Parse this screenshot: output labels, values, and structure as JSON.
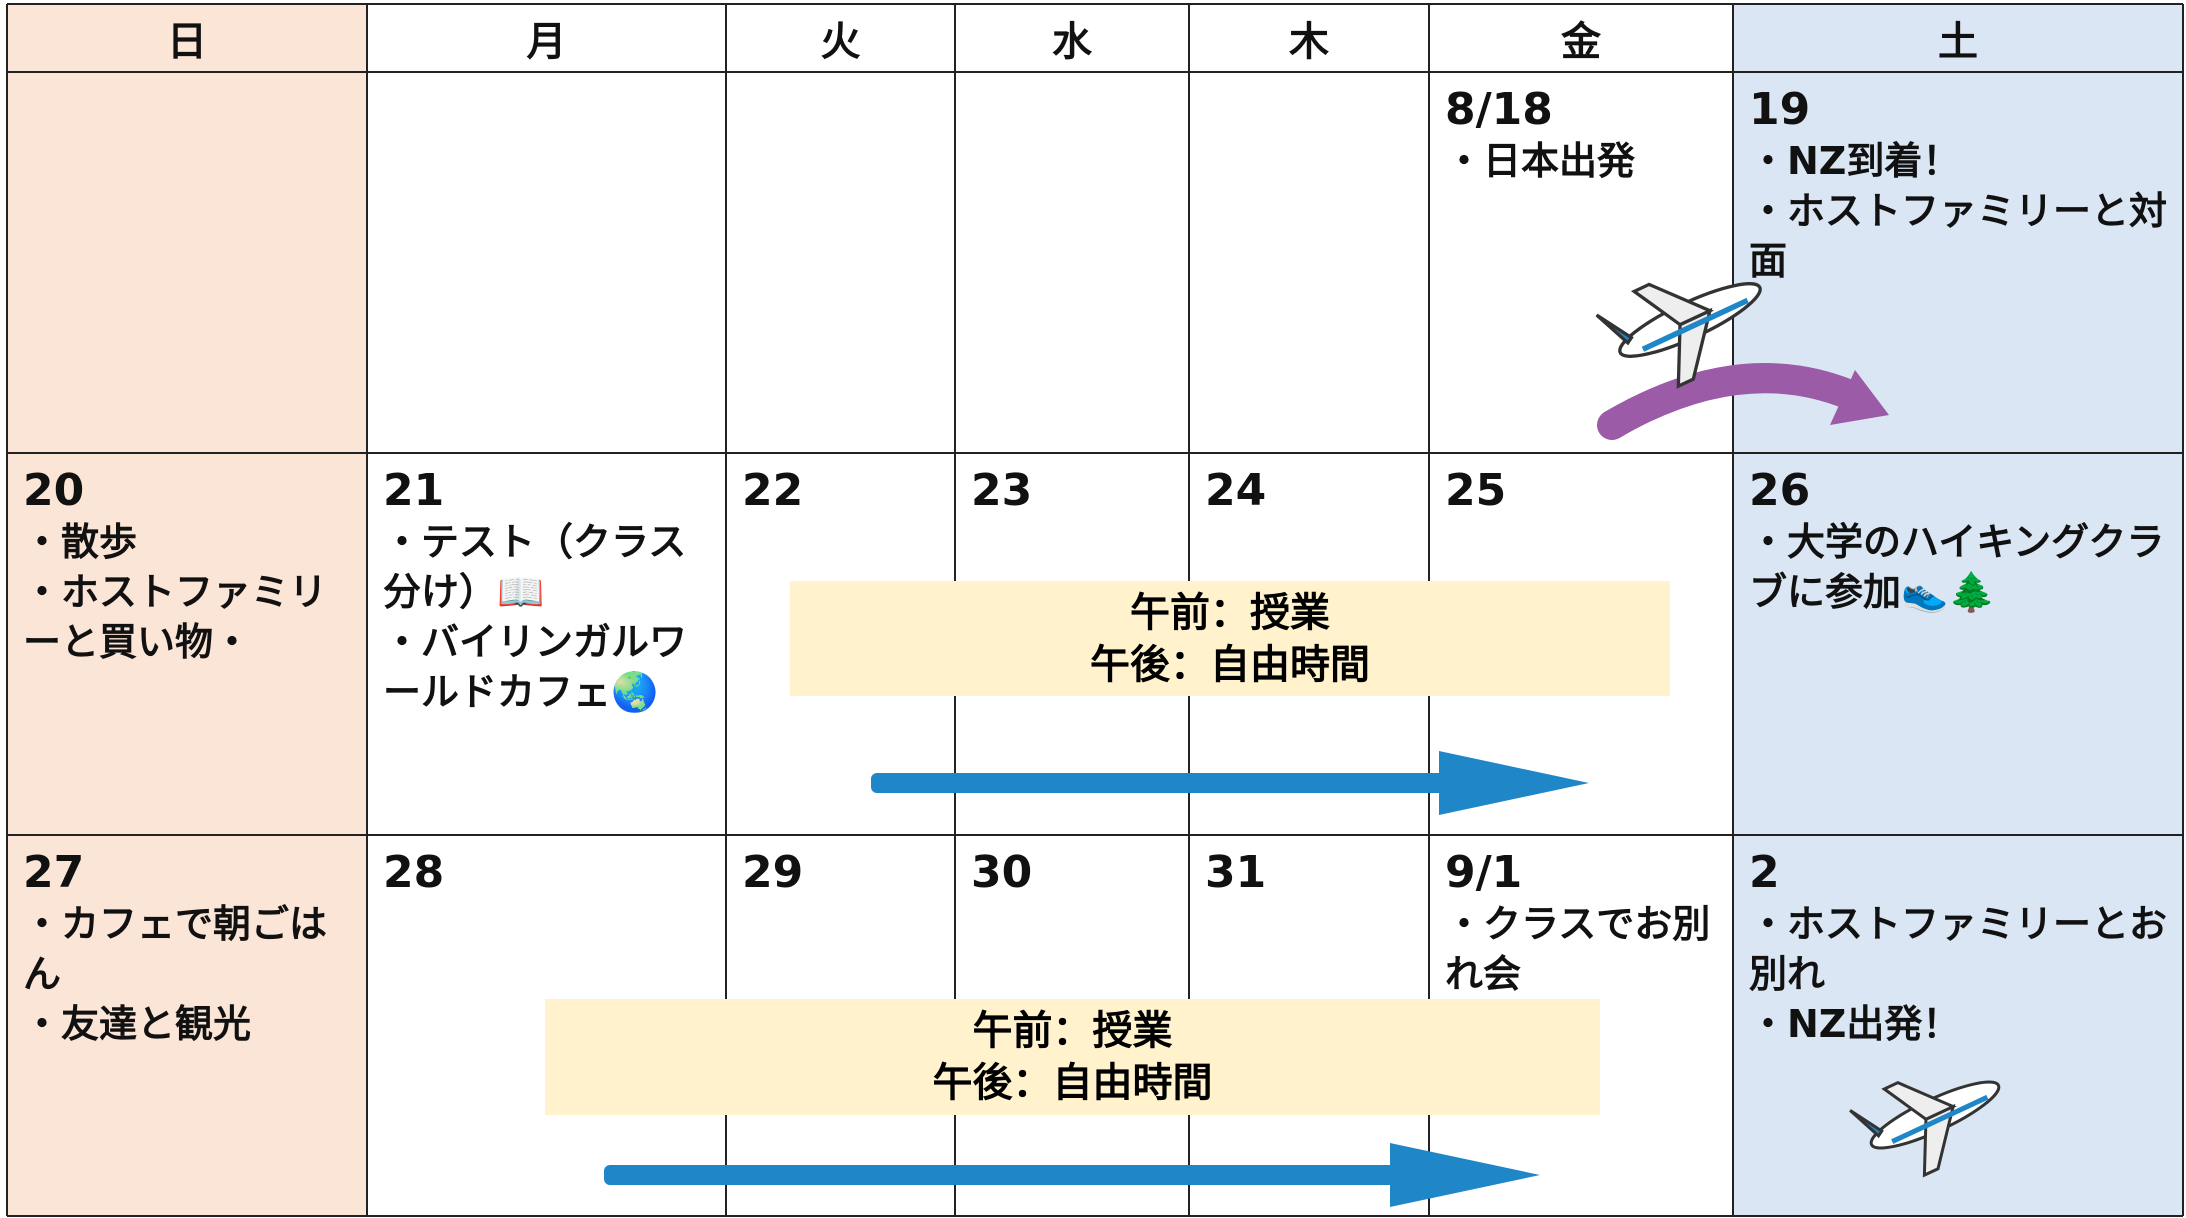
{
  "header": {
    "days": [
      "日",
      "月",
      "火",
      "水",
      "木",
      "金",
      "土"
    ]
  },
  "weeks": [
    [
      null,
      null,
      null,
      null,
      null,
      {
        "date": "8/18",
        "events": [
          "・日本出発"
        ]
      },
      {
        "date": "19",
        "events": [
          "・NZ到着！",
          "・ホストファミリーと対面"
        ]
      }
    ],
    [
      {
        "date": "20",
        "events": [
          "・散歩",
          "・ホストファミリーと買い物・"
        ]
      },
      {
        "date": "21",
        "events": [
          "・テスト（クラス分け）📖",
          "・バイリンガルワールドカフェ🌏"
        ]
      },
      {
        "date": "22"
      },
      {
        "date": "23"
      },
      {
        "date": "24"
      },
      {
        "date": "25"
      },
      {
        "date": "26",
        "events": [
          "・大学のハイキングクラブに参加👟🌲"
        ]
      }
    ],
    [
      {
        "date": "27",
        "events": [
          "・カフェで朝ごはん",
          "・友達と観光"
        ]
      },
      {
        "date": "28"
      },
      {
        "date": "29"
      },
      {
        "date": "30"
      },
      {
        "date": "31"
      },
      {
        "date": "9/1",
        "events": [
          "・クラスでお別れ会"
        ]
      },
      {
        "date": "2",
        "events": [
          "・ホストファミリーとお別れ",
          "・NZ出発！"
        ]
      }
    ]
  ],
  "banners": [
    {
      "lines": [
        "午前：授業",
        "午後：自由時間"
      ]
    },
    {
      "lines": [
        "午前：授業",
        "午後：自由時間"
      ]
    }
  ]
}
